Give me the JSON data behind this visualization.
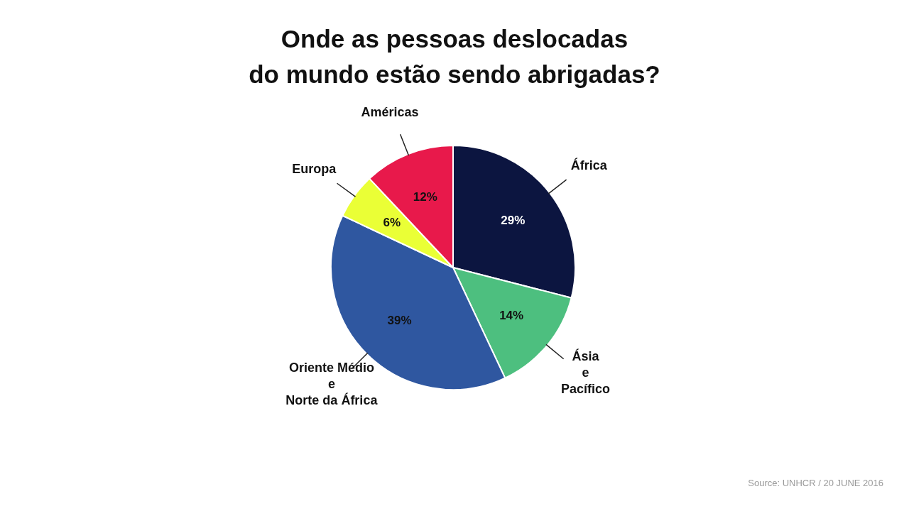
{
  "chart_data": {
    "type": "pie",
    "title": "Onde as pessoas deslocadas\ndo mundo estão sendo abrigadas?",
    "categories": [
      "África",
      "Ásia\ne\nPacífico",
      "Oriente Médio\ne\nNorte da África",
      "Europa",
      "Américas"
    ],
    "values": [
      29,
      14,
      39,
      6,
      12
    ],
    "colors": [
      "#0c1540",
      "#4dbf7f",
      "#2f57a0",
      "#eaff36",
      "#e8194b"
    ],
    "value_labels": [
      "29%",
      "14%",
      "39%",
      "6%",
      "12%"
    ],
    "legend": false,
    "annotations": [
      "Source: UNHCR / 20 JUNE 2016"
    ]
  }
}
